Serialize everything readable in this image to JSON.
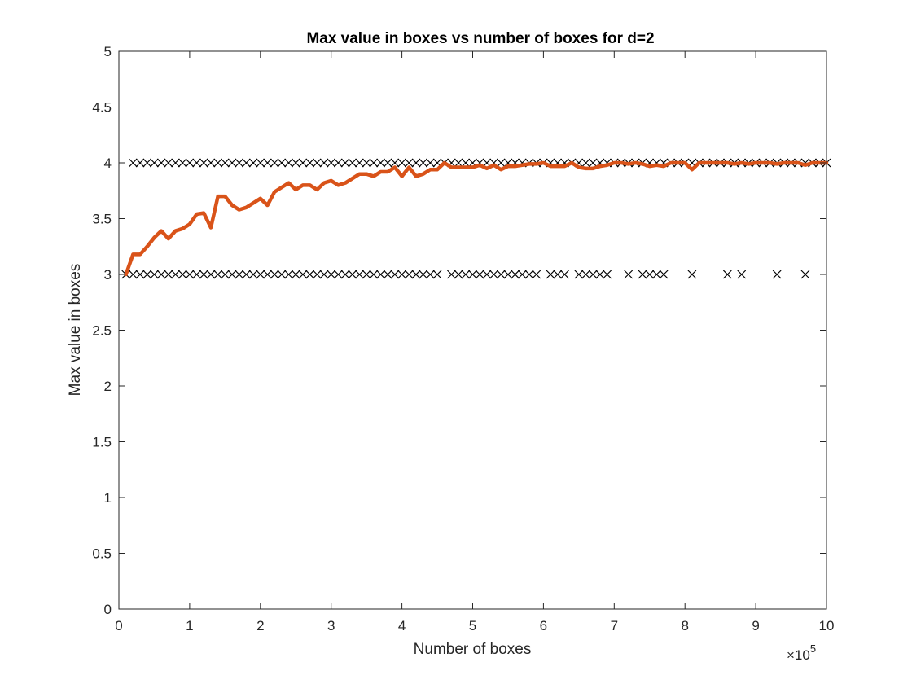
{
  "chart_data": {
    "type": "line",
    "title": "Max value in boxes vs number of boxes for d=2",
    "xlabel": "Number of boxes",
    "ylabel": "Max value in boxes",
    "x_scale_label": "×10",
    "x_scale_exponent": "5",
    "xlim": [
      0,
      10
    ],
    "ylim": [
      0,
      5
    ],
    "x_ticks": [
      "0",
      "1",
      "2",
      "3",
      "4",
      "5",
      "6",
      "7",
      "8",
      "9",
      "10"
    ],
    "y_ticks": [
      "0",
      "0.5",
      "1",
      "1.5",
      "2",
      "2.5",
      "3",
      "3.5",
      "4",
      "4.5",
      "5"
    ],
    "grid": false,
    "colors": {
      "line": "#D95319",
      "marker": "#000000",
      "axis": "#262626"
    },
    "series": [
      {
        "marker": "x",
        "style": "markers",
        "points": [
          {
            "x": 0.1,
            "y": 3
          },
          {
            "x": 0.2,
            "y": 3
          },
          {
            "x": 0.3,
            "y": 3
          },
          {
            "x": 0.4,
            "y": 3
          },
          {
            "x": 0.5,
            "y": 3
          },
          {
            "x": 0.6,
            "y": 3
          },
          {
            "x": 0.7,
            "y": 3
          },
          {
            "x": 0.8,
            "y": 3
          },
          {
            "x": 0.9,
            "y": 3
          },
          {
            "x": 1.0,
            "y": 3
          },
          {
            "x": 1.1,
            "y": 3
          },
          {
            "x": 1.2,
            "y": 3
          },
          {
            "x": 1.3,
            "y": 3
          },
          {
            "x": 1.4,
            "y": 3
          },
          {
            "x": 1.5,
            "y": 3
          },
          {
            "x": 1.6,
            "y": 3
          },
          {
            "x": 1.7,
            "y": 3
          },
          {
            "x": 1.8,
            "y": 3
          },
          {
            "x": 1.9,
            "y": 3
          },
          {
            "x": 2.0,
            "y": 3
          },
          {
            "x": 2.1,
            "y": 3
          },
          {
            "x": 2.2,
            "y": 3
          },
          {
            "x": 2.3,
            "y": 3
          },
          {
            "x": 2.4,
            "y": 3
          },
          {
            "x": 2.5,
            "y": 3
          },
          {
            "x": 2.6,
            "y": 3
          },
          {
            "x": 2.7,
            "y": 3
          },
          {
            "x": 2.8,
            "y": 3
          },
          {
            "x": 2.9,
            "y": 3
          },
          {
            "x": 3.0,
            "y": 3
          },
          {
            "x": 3.1,
            "y": 3
          },
          {
            "x": 3.2,
            "y": 3
          },
          {
            "x": 3.3,
            "y": 3
          },
          {
            "x": 3.4,
            "y": 3
          },
          {
            "x": 3.5,
            "y": 3
          },
          {
            "x": 3.6,
            "y": 3
          },
          {
            "x": 3.7,
            "y": 3
          },
          {
            "x": 3.8,
            "y": 3
          },
          {
            "x": 3.9,
            "y": 3
          },
          {
            "x": 4.0,
            "y": 3
          },
          {
            "x": 4.1,
            "y": 3
          },
          {
            "x": 4.2,
            "y": 3
          },
          {
            "x": 4.3,
            "y": 3
          },
          {
            "x": 4.4,
            "y": 3
          },
          {
            "x": 4.5,
            "y": 3
          },
          {
            "x": 4.7,
            "y": 3
          },
          {
            "x": 4.8,
            "y": 3
          },
          {
            "x": 4.9,
            "y": 3
          },
          {
            "x": 5.0,
            "y": 3
          },
          {
            "x": 5.1,
            "y": 3
          },
          {
            "x": 5.2,
            "y": 3
          },
          {
            "x": 5.3,
            "y": 3
          },
          {
            "x": 5.4,
            "y": 3
          },
          {
            "x": 5.5,
            "y": 3
          },
          {
            "x": 5.6,
            "y": 3
          },
          {
            "x": 5.7,
            "y": 3
          },
          {
            "x": 5.8,
            "y": 3
          },
          {
            "x": 5.9,
            "y": 3
          },
          {
            "x": 6.1,
            "y": 3
          },
          {
            "x": 6.2,
            "y": 3
          },
          {
            "x": 6.3,
            "y": 3
          },
          {
            "x": 6.5,
            "y": 3
          },
          {
            "x": 6.6,
            "y": 3
          },
          {
            "x": 6.7,
            "y": 3
          },
          {
            "x": 6.8,
            "y": 3
          },
          {
            "x": 6.9,
            "y": 3
          },
          {
            "x": 7.2,
            "y": 3
          },
          {
            "x": 7.4,
            "y": 3
          },
          {
            "x": 7.5,
            "y": 3
          },
          {
            "x": 7.6,
            "y": 3
          },
          {
            "x": 7.7,
            "y": 3
          },
          {
            "x": 8.1,
            "y": 3
          },
          {
            "x": 8.6,
            "y": 3
          },
          {
            "x": 8.8,
            "y": 3
          },
          {
            "x": 9.3,
            "y": 3
          },
          {
            "x": 9.7,
            "y": 3
          },
          {
            "x": 0.2,
            "y": 4
          },
          {
            "x": 0.3,
            "y": 4
          },
          {
            "x": 0.4,
            "y": 4
          },
          {
            "x": 0.5,
            "y": 4
          },
          {
            "x": 0.6,
            "y": 4
          },
          {
            "x": 0.7,
            "y": 4
          },
          {
            "x": 0.8,
            "y": 4
          },
          {
            "x": 0.9,
            "y": 4
          },
          {
            "x": 1.0,
            "y": 4
          },
          {
            "x": 1.1,
            "y": 4
          },
          {
            "x": 1.2,
            "y": 4
          },
          {
            "x": 1.3,
            "y": 4
          },
          {
            "x": 1.4,
            "y": 4
          },
          {
            "x": 1.5,
            "y": 4
          },
          {
            "x": 1.6,
            "y": 4
          },
          {
            "x": 1.7,
            "y": 4
          },
          {
            "x": 1.8,
            "y": 4
          },
          {
            "x": 1.9,
            "y": 4
          },
          {
            "x": 2.0,
            "y": 4
          },
          {
            "x": 2.1,
            "y": 4
          },
          {
            "x": 2.2,
            "y": 4
          },
          {
            "x": 2.3,
            "y": 4
          },
          {
            "x": 2.4,
            "y": 4
          },
          {
            "x": 2.5,
            "y": 4
          },
          {
            "x": 2.6,
            "y": 4
          },
          {
            "x": 2.7,
            "y": 4
          },
          {
            "x": 2.8,
            "y": 4
          },
          {
            "x": 2.9,
            "y": 4
          },
          {
            "x": 3.0,
            "y": 4
          },
          {
            "x": 3.1,
            "y": 4
          },
          {
            "x": 3.2,
            "y": 4
          },
          {
            "x": 3.3,
            "y": 4
          },
          {
            "x": 3.4,
            "y": 4
          },
          {
            "x": 3.5,
            "y": 4
          },
          {
            "x": 3.6,
            "y": 4
          },
          {
            "x": 3.7,
            "y": 4
          },
          {
            "x": 3.8,
            "y": 4
          },
          {
            "x": 3.9,
            "y": 4
          },
          {
            "x": 4.0,
            "y": 4
          },
          {
            "x": 4.1,
            "y": 4
          },
          {
            "x": 4.2,
            "y": 4
          },
          {
            "x": 4.3,
            "y": 4
          },
          {
            "x": 4.4,
            "y": 4
          },
          {
            "x": 4.5,
            "y": 4
          },
          {
            "x": 4.6,
            "y": 4
          },
          {
            "x": 4.7,
            "y": 4
          },
          {
            "x": 4.8,
            "y": 4
          },
          {
            "x": 4.9,
            "y": 4
          },
          {
            "x": 5.0,
            "y": 4
          },
          {
            "x": 5.1,
            "y": 4
          },
          {
            "x": 5.2,
            "y": 4
          },
          {
            "x": 5.3,
            "y": 4
          },
          {
            "x": 5.4,
            "y": 4
          },
          {
            "x": 5.5,
            "y": 4
          },
          {
            "x": 5.6,
            "y": 4
          },
          {
            "x": 5.7,
            "y": 4
          },
          {
            "x": 5.8,
            "y": 4
          },
          {
            "x": 5.9,
            "y": 4
          },
          {
            "x": 6.0,
            "y": 4
          },
          {
            "x": 6.1,
            "y": 4
          },
          {
            "x": 6.2,
            "y": 4
          },
          {
            "x": 6.3,
            "y": 4
          },
          {
            "x": 6.4,
            "y": 4
          },
          {
            "x": 6.5,
            "y": 4
          },
          {
            "x": 6.6,
            "y": 4
          },
          {
            "x": 6.7,
            "y": 4
          },
          {
            "x": 6.8,
            "y": 4
          },
          {
            "x": 6.9,
            "y": 4
          },
          {
            "x": 7.0,
            "y": 4
          },
          {
            "x": 7.1,
            "y": 4
          },
          {
            "x": 7.2,
            "y": 4
          },
          {
            "x": 7.3,
            "y": 4
          },
          {
            "x": 7.4,
            "y": 4
          },
          {
            "x": 7.5,
            "y": 4
          },
          {
            "x": 7.6,
            "y": 4
          },
          {
            "x": 7.7,
            "y": 4
          },
          {
            "x": 7.8,
            "y": 4
          },
          {
            "x": 7.9,
            "y": 4
          },
          {
            "x": 8.0,
            "y": 4
          },
          {
            "x": 8.1,
            "y": 4
          },
          {
            "x": 8.2,
            "y": 4
          },
          {
            "x": 8.3,
            "y": 4
          },
          {
            "x": 8.4,
            "y": 4
          },
          {
            "x": 8.5,
            "y": 4
          },
          {
            "x": 8.6,
            "y": 4
          },
          {
            "x": 8.7,
            "y": 4
          },
          {
            "x": 8.8,
            "y": 4
          },
          {
            "x": 8.9,
            "y": 4
          },
          {
            "x": 9.0,
            "y": 4
          },
          {
            "x": 9.1,
            "y": 4
          },
          {
            "x": 9.2,
            "y": 4
          },
          {
            "x": 9.3,
            "y": 4
          },
          {
            "x": 9.4,
            "y": 4
          },
          {
            "x": 9.5,
            "y": 4
          },
          {
            "x": 9.6,
            "y": 4
          },
          {
            "x": 9.7,
            "y": 4
          },
          {
            "x": 9.8,
            "y": 4
          },
          {
            "x": 9.9,
            "y": 4
          },
          {
            "x": 10.0,
            "y": 4
          }
        ]
      },
      {
        "style": "line",
        "x": [
          0.1,
          0.2,
          0.3,
          0.4,
          0.5,
          0.6,
          0.7,
          0.8,
          0.9,
          1.0,
          1.1,
          1.2,
          1.3,
          1.4,
          1.5,
          1.6,
          1.7,
          1.8,
          1.9,
          2.0,
          2.1,
          2.2,
          2.3,
          2.4,
          2.5,
          2.6,
          2.7,
          2.8,
          2.9,
          3.0,
          3.1,
          3.2,
          3.3,
          3.4,
          3.5,
          3.6,
          3.7,
          3.8,
          3.9,
          4.0,
          4.1,
          4.2,
          4.3,
          4.4,
          4.5,
          4.6,
          4.7,
          4.8,
          4.9,
          5.0,
          5.1,
          5.2,
          5.3,
          5.4,
          5.5,
          5.6,
          5.7,
          5.8,
          5.9,
          6.0,
          6.1,
          6.2,
          6.3,
          6.4,
          6.5,
          6.6,
          6.7,
          6.8,
          6.9,
          7.0,
          7.1,
          7.2,
          7.3,
          7.4,
          7.5,
          7.6,
          7.7,
          7.8,
          7.9,
          8.0,
          8.1,
          8.2,
          8.3,
          8.4,
          8.5,
          8.6,
          8.7,
          8.8,
          8.9,
          9.0,
          9.1,
          9.2,
          9.3,
          9.4,
          9.5,
          9.6,
          9.7,
          9.8,
          9.9,
          10.0
        ],
        "y": [
          3.0,
          3.18,
          3.18,
          3.25,
          3.33,
          3.39,
          3.32,
          3.39,
          3.41,
          3.45,
          3.54,
          3.55,
          3.42,
          3.7,
          3.7,
          3.62,
          3.58,
          3.6,
          3.64,
          3.68,
          3.62,
          3.74,
          3.78,
          3.82,
          3.76,
          3.8,
          3.8,
          3.76,
          3.82,
          3.84,
          3.8,
          3.82,
          3.86,
          3.9,
          3.9,
          3.88,
          3.92,
          3.92,
          3.96,
          3.88,
          3.96,
          3.88,
          3.9,
          3.94,
          3.94,
          4.0,
          3.96,
          3.96,
          3.96,
          3.96,
          3.98,
          3.95,
          3.98,
          3.94,
          3.97,
          3.97,
          3.98,
          3.99,
          3.99,
          4.0,
          3.97,
          3.97,
          3.97,
          4.0,
          3.96,
          3.95,
          3.95,
          3.97,
          3.98,
          4.0,
          4.0,
          3.99,
          4.0,
          3.99,
          3.97,
          3.98,
          3.97,
          4.0,
          4.0,
          4.0,
          3.94,
          4.0,
          4.0,
          4.0,
          4.0,
          4.0,
          3.99,
          4.0,
          3.99,
          4.0,
          4.0,
          4.0,
          3.99,
          4.0,
          4.0,
          4.0,
          3.98,
          4.0,
          4.0,
          4.0
        ]
      }
    ]
  }
}
